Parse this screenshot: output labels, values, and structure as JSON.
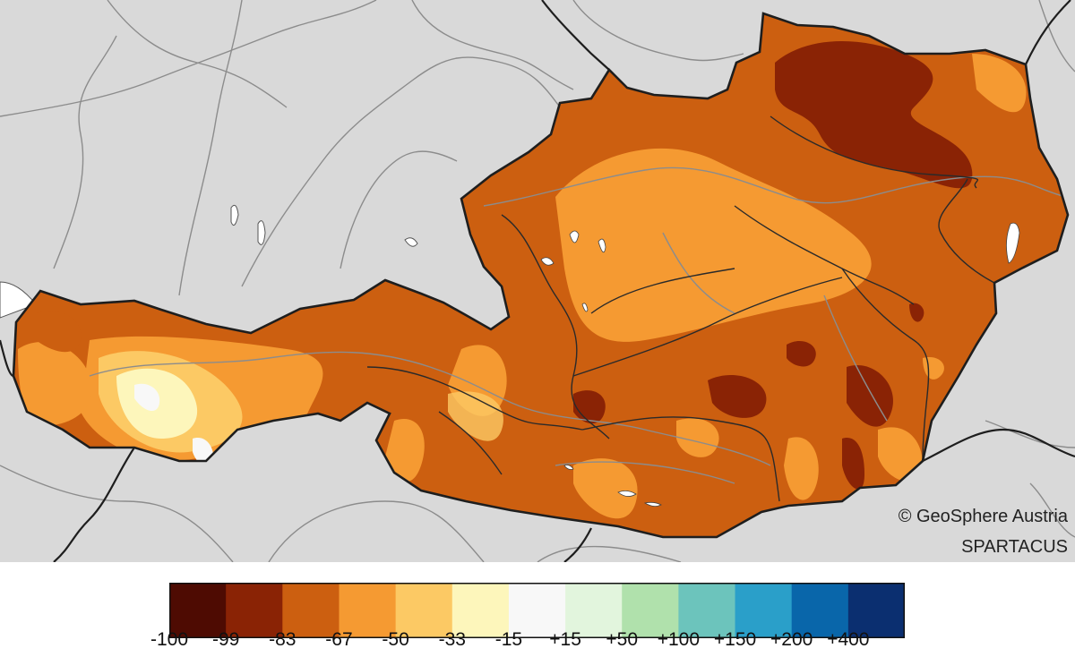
{
  "credits": {
    "line1": "© GeoSphere Austria",
    "line2": "SPARTACUS"
  },
  "legend": {
    "colors": [
      "#4e0b02",
      "#8a2305",
      "#cc5f10",
      "#f59a32",
      "#fcc964",
      "#fdf6bb",
      "#f8f8f8",
      "#e2f5dd",
      "#b0e1ac",
      "#6cc4bc",
      "#2a9fc9",
      "#0966aa",
      "#0b2f70"
    ],
    "labels": [
      "-100",
      "-99",
      "-83",
      "-67",
      "-50",
      "-33",
      "-15",
      "+15",
      "+50",
      "+100",
      "+150",
      "+200",
      "+400"
    ]
  },
  "colors": {
    "background": "#d9d9d9",
    "border": "#1e1e1e",
    "rivers": "#8c8c8c"
  }
}
